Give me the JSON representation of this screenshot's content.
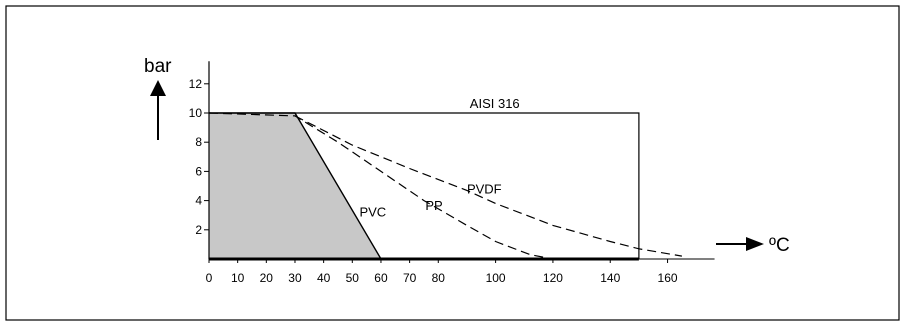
{
  "chart_data": {
    "type": "line",
    "y_unit": "bar",
    "x_unit": "ºC",
    "x_ticks": [
      0,
      10,
      20,
      30,
      40,
      50,
      60,
      70,
      80,
      100,
      120,
      140,
      160
    ],
    "y_ticks": [
      2,
      4,
      6,
      8,
      10,
      12
    ],
    "xlim": [
      0,
      175
    ],
    "ylim": [
      0,
      13
    ],
    "grid": false,
    "series": [
      {
        "name": "AISI 316",
        "style": "solid",
        "points": [
          [
            0,
            10
          ],
          [
            150,
            10
          ],
          [
            150,
            0
          ]
        ]
      },
      {
        "name": "PVC",
        "style": "solid",
        "fill": "#c8c8c8",
        "points": [
          [
            0,
            10
          ],
          [
            30,
            10
          ],
          [
            60,
            0
          ]
        ]
      },
      {
        "name": "PP",
        "style": "dashed",
        "points": [
          [
            0,
            10
          ],
          [
            30,
            9.8
          ],
          [
            45,
            8
          ],
          [
            60,
            6
          ],
          [
            75,
            4
          ],
          [
            90,
            2.3
          ],
          [
            100,
            1.2
          ],
          [
            112,
            0.3
          ],
          [
            120,
            0
          ]
        ]
      },
      {
        "name": "PVDF",
        "style": "dashed",
        "points": [
          [
            30,
            9.8
          ],
          [
            50,
            7.8
          ],
          [
            70,
            6.2
          ],
          [
            90,
            4.7
          ],
          [
            100,
            3.8
          ],
          [
            120,
            2.3
          ],
          [
            140,
            1.2
          ],
          [
            150,
            0.7
          ],
          [
            165,
            0.2
          ]
        ]
      }
    ]
  }
}
